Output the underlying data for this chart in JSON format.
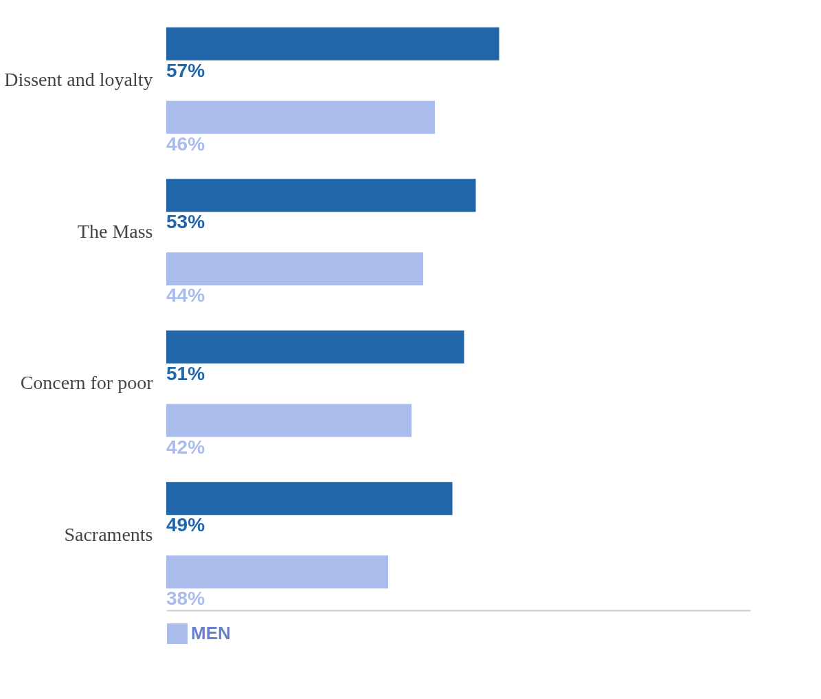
{
  "chart_data": {
    "type": "bar",
    "orientation": "horizontal",
    "categories": [
      "Dissent and loyalty",
      "The Mass",
      "Concern for poor",
      "Sacraments"
    ],
    "series": [
      {
        "color": "#2166a8",
        "values": [
          57,
          53,
          51,
          49
        ],
        "value_labels": [
          "57%",
          "53%",
          "51%",
          "49%"
        ]
      },
      {
        "name": "MEN",
        "color": "#a9bcec",
        "values": [
          46,
          44,
          42,
          38
        ],
        "value_labels": [
          "46%",
          "44%",
          "42%",
          "38%"
        ]
      }
    ],
    "xlim": [
      0,
      100
    ],
    "tick_labels": "y",
    "legend": "bottom",
    "grid": false
  }
}
